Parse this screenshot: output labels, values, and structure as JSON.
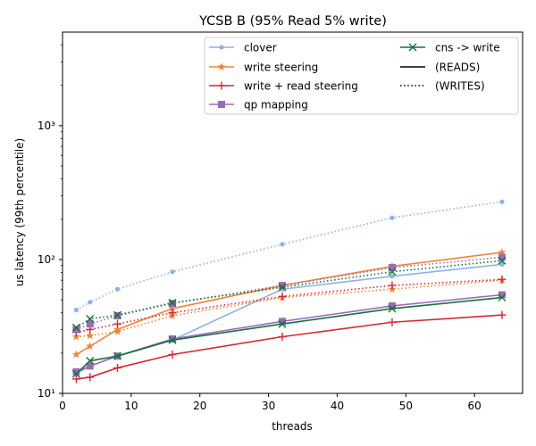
{
  "chart_data": {
    "type": "line",
    "title": "YCSB B (95% Read 5% write)",
    "xlabel": "threads",
    "ylabel": "us latency (99th percentile)",
    "yscale": "log",
    "xlim": [
      -0.0,
      67
    ],
    "ylim": [
      10,
      5000
    ],
    "x_ticks": [
      0,
      10,
      20,
      30,
      40,
      50,
      60
    ],
    "y_ticks": [
      {
        "value": 10,
        "label": "10¹"
      },
      {
        "value": 100,
        "label": "10²"
      },
      {
        "value": 1000,
        "label": "10³"
      }
    ],
    "legend": {
      "placement": "top-right",
      "ncol": 2,
      "entries": [
        "clover",
        "write steering",
        "write + read steering",
        "qp mapping",
        "cns -> write",
        "(READS)",
        "(WRITES)"
      ]
    },
    "x": [
      2,
      4,
      8,
      16,
      32,
      48,
      64
    ],
    "series": [
      {
        "name": "clover",
        "color": "#8fb0e8",
        "marker": "dot",
        "reads": [
          14,
          16,
          19,
          25,
          60,
          75,
          92
        ],
        "writes": [
          42,
          48,
          60,
          81,
          130,
          205,
          270
        ]
      },
      {
        "name": "write steering",
        "color": "#ef8538",
        "marker": "star",
        "reads": [
          19.5,
          22.5,
          30,
          43,
          64,
          89,
          113
        ],
        "writes": [
          26.5,
          27,
          29,
          38,
          52,
          60,
          70
        ]
      },
      {
        "name": "write + read steering",
        "color": "#d62738",
        "marker": "plus",
        "reads": [
          12.8,
          13.2,
          15.5,
          19.5,
          26.5,
          34,
          38.5
        ],
        "writes": [
          28.5,
          30,
          33,
          40,
          53,
          64,
          71
        ]
      },
      {
        "name": "qp mapping",
        "color": "#9b6bbb",
        "marker": "square",
        "reads": [
          14.5,
          16,
          19,
          25.5,
          34.5,
          45,
          54.5
        ],
        "writes": [
          30,
          33,
          38,
          47,
          64,
          87,
          104
        ]
      },
      {
        "name": "cns -> write",
        "color": "#16713a",
        "marker": "x",
        "reads": [
          14,
          17.5,
          19,
          25,
          33,
          43,
          52
        ],
        "writes": [
          31,
          36,
          38.5,
          47.5,
          62,
          81,
          98
        ]
      }
    ]
  }
}
